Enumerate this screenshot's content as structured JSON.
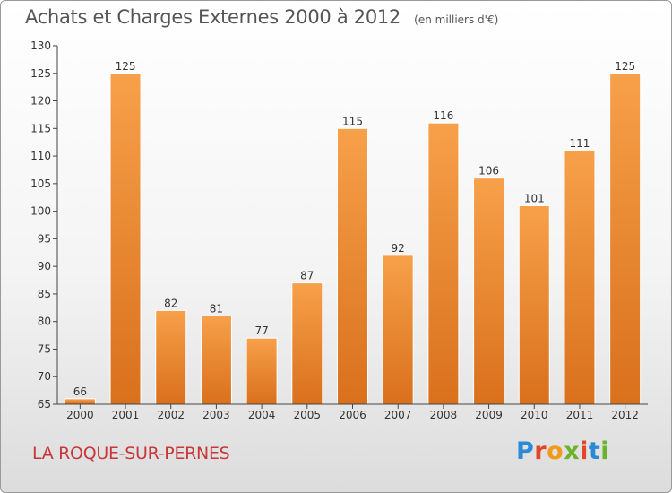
{
  "header": {
    "title": "Achats et Charges Externes 2000 à 2012",
    "unit": "(en milliers d'€)"
  },
  "footer": {
    "location": "LA ROQUE-SUR-PERNES",
    "brand": "Proxiti"
  },
  "colors": {
    "bar_light": "#f7a04a",
    "bar_dark": "#d9701c",
    "location_text": "#c8373a",
    "brand_letters": [
      "#2b8ad6",
      "#e0462c",
      "#f19b1b",
      "#6ab42d",
      "#e0462c",
      "#2b8ad6",
      "#6ab42d"
    ]
  },
  "chart_data": {
    "type": "bar",
    "title": "Achats et Charges Externes 2000 à 2012",
    "subtitle": "(en milliers d'€)",
    "xlabel": "",
    "ylabel": "",
    "categories": [
      "2000",
      "2001",
      "2002",
      "2003",
      "2004",
      "2005",
      "2006",
      "2007",
      "2008",
      "2009",
      "2010",
      "2011",
      "2012"
    ],
    "values": [
      66,
      125,
      82,
      81,
      77,
      87,
      115,
      92,
      116,
      106,
      101,
      111,
      125
    ],
    "ylim": [
      65,
      130
    ],
    "yticks": [
      65,
      70,
      75,
      80,
      85,
      90,
      95,
      100,
      105,
      110,
      115,
      120,
      125,
      130
    ],
    "grid": false,
    "legend": "none"
  }
}
